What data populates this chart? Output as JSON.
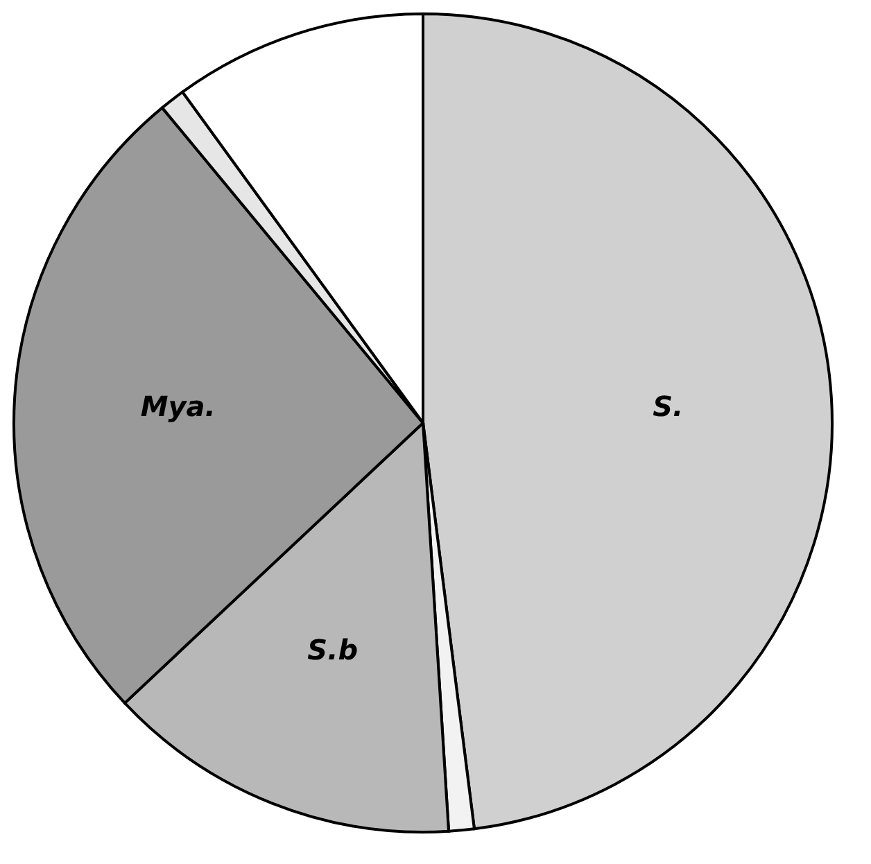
{
  "chart_data": {
    "type": "pie",
    "categories": [
      "S.",
      null,
      "S.b",
      "Mya.",
      null,
      null
    ],
    "values": [
      48,
      1,
      14,
      26,
      1,
      10
    ],
    "colors": [
      "#d0d0d0",
      "#f2f2f2",
      "#b8b8b8",
      "#9a9a9a",
      "#e6e6e6",
      "#ffffff"
    ]
  }
}
